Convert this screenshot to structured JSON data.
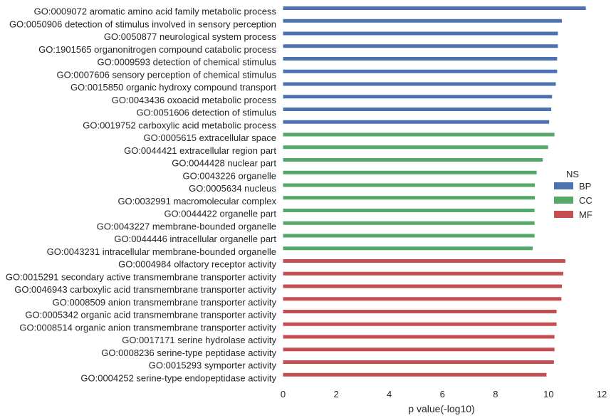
{
  "chart_data": {
    "type": "bar",
    "orientation": "horizontal",
    "xlabel": "p value(-log10)",
    "ylabel": "",
    "xlim": [
      0,
      12
    ],
    "xticks": [
      "0",
      "2",
      "4",
      "6",
      "8",
      "10",
      "12"
    ],
    "grid": false,
    "legend": {
      "title": "NS",
      "position": "right"
    },
    "categories": [
      "GO:0009072 aromatic amino acid family metabolic process",
      "GO:0050906 detection of stimulus involved in sensory perception",
      "GO:0050877 neurological system process",
      "GO:1901565 organonitrogen compound catabolic process",
      "GO:0009593 detection of chemical stimulus",
      "GO:0007606 sensory perception of chemical stimulus",
      "GO:0015850 organic hydroxy compound transport",
      "GO:0043436 oxoacid metabolic process",
      "GO:0051606 detection of stimulus",
      "GO:0019752 carboxylic acid metabolic process",
      "GO:0005615 extracellular space",
      "GO:0044421 extracellular region part",
      "GO:0044428 nuclear part",
      "GO:0043226 organelle",
      "GO:0005634 nucleus",
      "GO:0032991 macromolecular complex",
      "GO:0044422 organelle part",
      "GO:0043227 membrane-bounded organelle",
      "GO:0044446 intracellular organelle part",
      "GO:0043231 intracellular membrane-bounded organelle",
      "GO:0004984 olfactory receptor activity",
      "GO:0015291 secondary active transmembrane transporter activity",
      "GO:0046943 carboxylic acid transmembrane transporter activity",
      "GO:0008509 anion transmembrane transporter activity",
      "GO:0005342 organic acid transmembrane transporter activity",
      "GO:0008514 organic anion transmembrane transporter activity",
      "GO:0017171 serine hydrolase activity",
      "GO:0008236 serine-type peptidase activity",
      "GO:0015293 symporter activity",
      "GO:0004252 serine-type endopeptidase activity"
    ],
    "series": [
      {
        "name": "BP",
        "color": "#4c72b0",
        "values": [
          11.4,
          10.5,
          10.35,
          10.35,
          10.32,
          10.32,
          10.27,
          10.13,
          10.1,
          10.02,
          null,
          null,
          null,
          null,
          null,
          null,
          null,
          null,
          null,
          null,
          null,
          null,
          null,
          null,
          null,
          null,
          null,
          null,
          null,
          null
        ]
      },
      {
        "name": "CC",
        "color": "#55a868",
        "values": [
          null,
          null,
          null,
          null,
          null,
          null,
          null,
          null,
          null,
          null,
          10.22,
          9.98,
          9.78,
          9.55,
          9.48,
          9.48,
          9.47,
          9.47,
          9.47,
          9.4,
          null,
          null,
          null,
          null,
          null,
          null,
          null,
          null,
          null,
          null
        ]
      },
      {
        "name": "MF",
        "color": "#c44e52",
        "values": [
          null,
          null,
          null,
          null,
          null,
          null,
          null,
          null,
          null,
          null,
          null,
          null,
          null,
          null,
          null,
          null,
          null,
          null,
          null,
          null,
          10.63,
          10.55,
          10.5,
          10.48,
          10.3,
          10.3,
          10.22,
          10.22,
          10.2,
          9.92
        ]
      }
    ]
  }
}
